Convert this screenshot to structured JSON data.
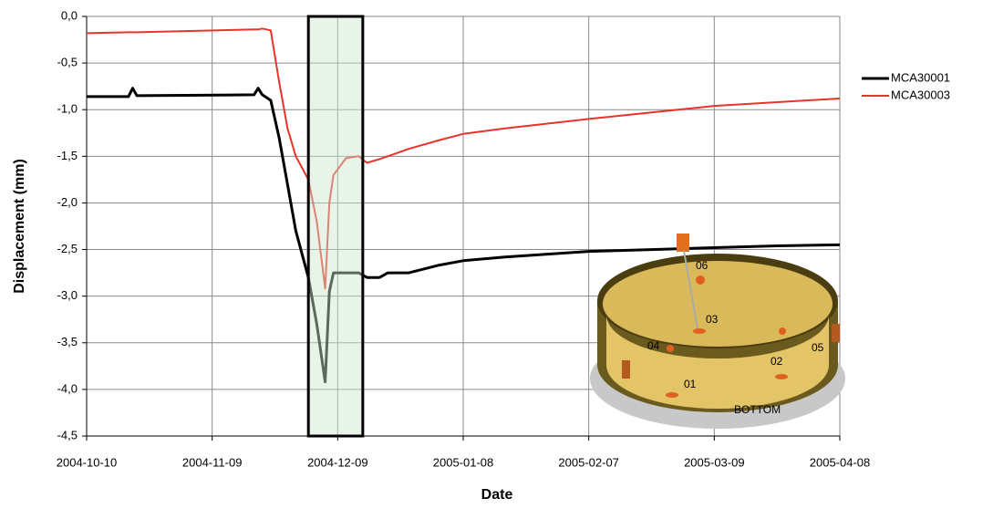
{
  "chart_data": {
    "type": "line",
    "x_label": "Date",
    "y_label": "Displacement (mm)",
    "x": [
      "2004-10-10",
      "2004-10-20",
      "2004-10-21",
      "2004-10-22",
      "2004-11-19",
      "2004-11-20",
      "2004-11-21",
      "2004-11-23",
      "2004-11-25",
      "2004-11-27",
      "2004-11-29",
      "2004-12-02",
      "2004-12-04",
      "2004-12-06",
      "2004-12-07",
      "2004-12-08",
      "2004-12-11",
      "2004-12-14",
      "2004-12-16",
      "2004-12-19",
      "2004-12-21",
      "2004-12-26",
      "2005-01-02",
      "2005-01-08",
      "2005-01-18",
      "2005-02-07",
      "2005-02-22",
      "2005-03-09",
      "2005-03-24",
      "2005-04-08"
    ],
    "series": [
      {
        "name": "MCA30001",
        "color": "#000000",
        "values": [
          -0.86,
          -0.86,
          -0.77,
          -0.85,
          -0.84,
          -0.77,
          -0.84,
          -0.9,
          -1.3,
          -1.8,
          -2.3,
          -2.8,
          -3.3,
          -3.92,
          -2.95,
          -2.75,
          -2.75,
          -2.75,
          -2.8,
          -2.8,
          -2.75,
          -2.75,
          -2.67,
          -2.62,
          -2.58,
          -2.52,
          -2.5,
          -2.48,
          -2.46,
          -2.45
        ]
      },
      {
        "name": "MCA30003",
        "color": "#e8332a",
        "values": [
          -0.18,
          -0.17,
          -0.17,
          -0.17,
          -0.14,
          -0.14,
          -0.13,
          -0.15,
          -0.7,
          -1.2,
          -1.5,
          -1.75,
          -2.2,
          -2.92,
          -2.0,
          -1.7,
          -1.52,
          -1.5,
          -1.57,
          -1.53,
          -1.5,
          -1.42,
          -1.33,
          -1.26,
          -1.2,
          -1.1,
          -1.03,
          -0.96,
          -0.92,
          -0.88
        ]
      }
    ],
    "xlim": [
      "2004-10-10",
      "2005-04-08"
    ],
    "xticks": [
      "2004-10-10",
      "2004-11-09",
      "2004-12-09",
      "2005-01-08",
      "2005-02-07",
      "2005-03-09",
      "2005-04-08"
    ],
    "ylim": [
      -4.5,
      0
    ],
    "yticks": [
      {
        "value": 0,
        "label": "0,0"
      },
      {
        "value": -0.5,
        "label": "-0,5"
      },
      {
        "value": -1,
        "label": "-1,0"
      },
      {
        "value": -1.5,
        "label": "-1,5"
      },
      {
        "value": -2,
        "label": "-2,0"
      },
      {
        "value": -2.5,
        "label": "-2,5"
      },
      {
        "value": -3,
        "label": "-3,0"
      },
      {
        "value": -3.5,
        "label": "-3,5"
      },
      {
        "value": -4,
        "label": "-4,0"
      },
      {
        "value": -4.5,
        "label": "-4,5"
      }
    ],
    "grid": true,
    "legend": "right",
    "highlight": [
      "2004-12-02",
      "2004-12-15"
    ]
  },
  "inset": {
    "labels": [
      "06",
      "03",
      "04",
      "05",
      "02",
      "01",
      "BOTTOM"
    ]
  }
}
